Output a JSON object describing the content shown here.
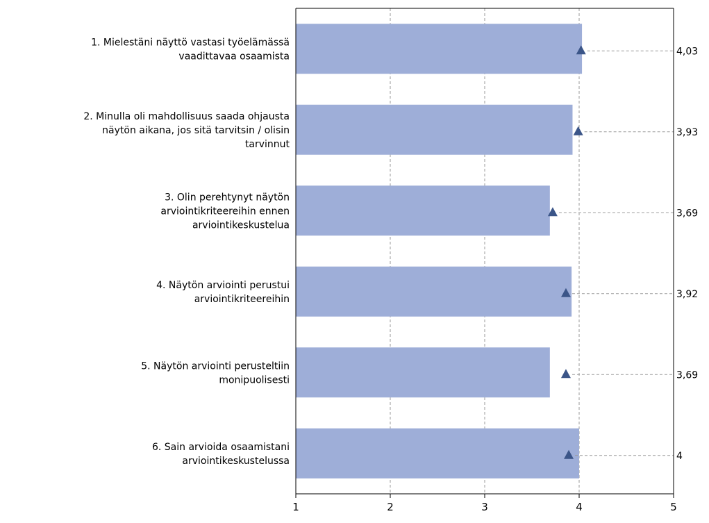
{
  "chart_data": {
    "type": "bar",
    "orientation": "horizontal",
    "title": "",
    "xlabel": "",
    "ylabel": "",
    "xlim": [
      1,
      5
    ],
    "x_ticks": [
      "1",
      "2",
      "3",
      "4",
      "5"
    ],
    "grid": "vertical dashed",
    "categories": [
      [
        "1. Mielestäni näyttö vastasi työelämässä",
        "vaadittavaa osaamista"
      ],
      [
        "2. Minulla oli mahdollisuus saada ohjausta",
        "näytön aikana, jos sitä tarvitsin / olisin",
        "tarvinnut"
      ],
      [
        "3. Olin perehtynyt näytön",
        "arviointikriteereihin ennen",
        "arviointikeskustelua"
      ],
      [
        "4. Näytön arviointi perustui",
        "arviointikriteereihin"
      ],
      [
        "5. Näytön arviointi perusteltiin",
        "monipuolisesti"
      ],
      [
        "6. Sain arvioida osaamistani",
        "arviointikeskustelussa"
      ]
    ],
    "values": [
      4.03,
      3.93,
      3.69,
      3.92,
      3.69,
      4.0
    ],
    "value_labels": [
      "4,03",
      "3,93",
      "3,69",
      "3,92",
      "3,69",
      "4"
    ],
    "markers": {
      "shape": "triangle",
      "values": [
        4.02,
        3.99,
        3.72,
        3.86,
        3.86,
        3.89
      ]
    },
    "colors": {
      "bar": "#9eaed8",
      "marker": "#3b5588",
      "grid": "#9a9a9a",
      "leader": "#9a9a9a",
      "axis": "#000000"
    }
  }
}
